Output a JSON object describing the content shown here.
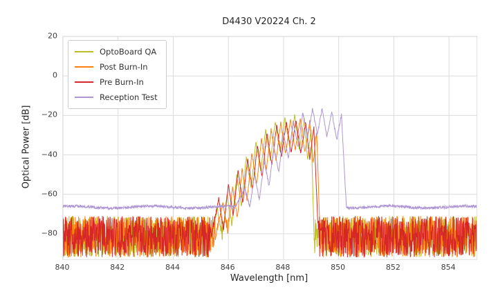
{
  "chart_data": {
    "type": "line",
    "title": "D4430 V20224 Ch. 2",
    "xlabel": "Wavelength [nm]",
    "ylabel": "Optical Power [dB]",
    "xlim": [
      840,
      855
    ],
    "ylim": [
      -93,
      20
    ],
    "xticks": [
      840,
      842,
      844,
      846,
      848,
      850,
      852,
      854
    ],
    "xticklabels": [
      "840",
      "842",
      "844",
      "846",
      "848",
      "850",
      "852",
      "854"
    ],
    "yticks": [
      20,
      0,
      -20,
      -40,
      -60,
      -80
    ],
    "yticklabels": [
      "20",
      "0",
      "−20",
      "−40",
      "−60",
      "−80"
    ],
    "grid": true,
    "legend_position": "upper left",
    "series": [
      {
        "name": "OptoBoard QA",
        "color": "#bcbd22",
        "noise": {
          "type": "band",
          "top": -71,
          "bottom": -92
        },
        "comb": {
          "rise_x": 845.3,
          "drop_x": 849.12,
          "base": -88,
          "valley_depth": 16,
          "peaks": [
            [
              845.6,
              -67
            ],
            [
              845.95,
              -60
            ],
            [
              846.3,
              -50
            ],
            [
              846.65,
              -41
            ],
            [
              847.0,
              -33
            ],
            [
              847.35,
              -27
            ],
            [
              847.7,
              -23
            ],
            [
              848.05,
              -20.5
            ],
            [
              848.4,
              -20
            ],
            [
              848.75,
              -21.5
            ],
            [
              849.0,
              -27
            ]
          ]
        }
      },
      {
        "name": "Post Burn-In",
        "color": "#ff7f0e",
        "noise": {
          "type": "band",
          "top": -71,
          "bottom": -92
        },
        "comb": {
          "rise_x": 845.45,
          "drop_x": 849.34,
          "base": -88,
          "valley_depth": 16,
          "peaks": [
            [
              845.8,
              -64
            ],
            [
              846.15,
              -56
            ],
            [
              846.5,
              -47
            ],
            [
              846.85,
              -39
            ],
            [
              847.2,
              -32
            ],
            [
              847.55,
              -27
            ],
            [
              847.9,
              -23.5
            ],
            [
              848.25,
              -22
            ],
            [
              848.6,
              -21.5
            ],
            [
              848.95,
              -23
            ],
            [
              849.2,
              -28
            ]
          ]
        }
      },
      {
        "name": "Pre Burn-In",
        "color": "#d62728",
        "noise": {
          "type": "band",
          "top": -71,
          "bottom": -92
        },
        "comb": {
          "rise_x": 845.3,
          "drop_x": 849.28,
          "base": -88,
          "valley_depth": 16,
          "peaks": [
            [
              845.65,
              -62
            ],
            [
              846.0,
              -55
            ],
            [
              846.35,
              -48
            ],
            [
              846.7,
              -42
            ],
            [
              847.05,
              -35
            ],
            [
              847.4,
              -29
            ],
            [
              847.75,
              -25
            ],
            [
              848.1,
              -23
            ],
            [
              848.45,
              -22.5
            ],
            [
              848.8,
              -23.5
            ],
            [
              849.1,
              -26
            ]
          ]
        }
      },
      {
        "name": "Reception Test",
        "color": "#ad96d4",
        "noise": {
          "type": "flat",
          "level": -66.5,
          "jitter": 1.4
        },
        "comb": {
          "rise_x": 846.25,
          "drop_x": 850.28,
          "base": -66.5,
          "valley_depth": 13,
          "peaks": [
            [
              846.6,
              -57
            ],
            [
              846.95,
              -50
            ],
            [
              847.3,
              -43
            ],
            [
              847.65,
              -36
            ],
            [
              848.0,
              -29
            ],
            [
              848.35,
              -23
            ],
            [
              848.7,
              -18.5
            ],
            [
              849.05,
              -16.5
            ],
            [
              849.4,
              -16.5
            ],
            [
              849.75,
              -18
            ],
            [
              850.1,
              -19.5
            ]
          ]
        }
      }
    ]
  }
}
